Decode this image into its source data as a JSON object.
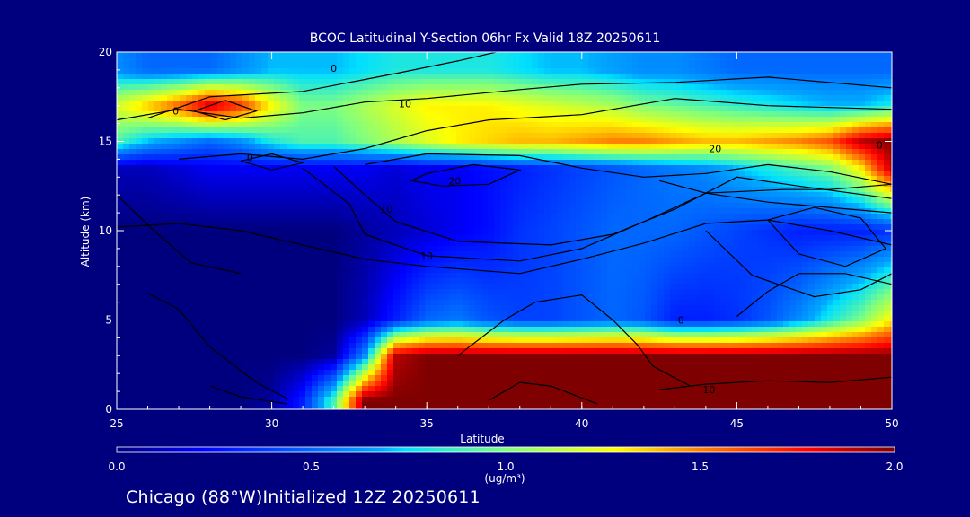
{
  "chart_data": {
    "type": "heatmap",
    "title": "BCOC Latitudinal Y-Section 06hr  Fx Valid 18Z 20250611",
    "xlabel": "Latitude",
    "ylabel": "Altitude (km)",
    "xlim": [
      25,
      50
    ],
    "ylim": [
      0,
      20
    ],
    "x_ticks": [
      "25",
      "30",
      "35",
      "40",
      "45",
      "50"
    ],
    "y_ticks": [
      "0",
      "5",
      "10",
      "15",
      "20"
    ],
    "colorbar": {
      "label": "(ug/m³)",
      "range": [
        0.0,
        2.0
      ],
      "ticks": [
        "0.0",
        "0.5",
        "1.0",
        "1.5",
        "2.0"
      ],
      "colormap": "jet"
    },
    "surface_field": {
      "description_rows": [
        {
          "alt": 0.5,
          "values": [
            0.0,
            0.0,
            0.0,
            0.0,
            0.0,
            0.05,
            0.3,
            0.9,
            2.0,
            2.0,
            2.0,
            2.0,
            2.0,
            2.0,
            2.0,
            2.0,
            2.0,
            2.0,
            2.0,
            2.0,
            2.0,
            2.0,
            2.0,
            2.0,
            2.0,
            2.0
          ]
        },
        {
          "alt": 3.0,
          "values": [
            0.0,
            0.0,
            0.0,
            0.0,
            0.0,
            0.0,
            0.0,
            0.05,
            0.6,
            1.9,
            2.0,
            2.0,
            2.0,
            2.0,
            2.0,
            2.0,
            2.0,
            2.0,
            2.0,
            2.0,
            2.0,
            2.0,
            2.0,
            2.0,
            2.0,
            2.0
          ]
        },
        {
          "alt": 5.0,
          "values": [
            0.0,
            0.0,
            0.0,
            0.0,
            0.0,
            0.0,
            0.0,
            0.0,
            0.1,
            0.3,
            0.5,
            0.55,
            0.45,
            0.4,
            0.4,
            0.45,
            0.5,
            0.45,
            0.3,
            0.3,
            0.35,
            0.45,
            0.6,
            0.8,
            1.0,
            1.3
          ]
        },
        {
          "alt": 10.0,
          "values": [
            0.0,
            0.0,
            0.0,
            0.0,
            0.0,
            0.0,
            0.0,
            0.0,
            0.05,
            0.1,
            0.15,
            0.2,
            0.25,
            0.35,
            0.4,
            0.45,
            0.5,
            0.5,
            0.5,
            0.45,
            0.4,
            0.35,
            0.3,
            0.3,
            0.3,
            0.35
          ]
        },
        {
          "alt": 13.5,
          "values": [
            0.1,
            0.1,
            0.15,
            0.2,
            0.2,
            0.2,
            0.2,
            0.2,
            0.2,
            0.15,
            0.2,
            0.2,
            0.25,
            0.3,
            0.35,
            0.4,
            0.45,
            0.5,
            0.55,
            0.6,
            0.7,
            0.8,
            0.9,
            1.0,
            1.3,
            1.9
          ]
        },
        {
          "alt": 15.0,
          "values": [
            0.9,
            0.7,
            0.6,
            0.5,
            0.6,
            0.8,
            0.9,
            0.9,
            1.0,
            1.1,
            1.2,
            1.3,
            1.35,
            1.4,
            1.4,
            1.45,
            1.5,
            1.5,
            1.45,
            1.4,
            1.4,
            1.45,
            1.5,
            1.6,
            1.9,
            2.0
          ]
        },
        {
          "alt": 17.0,
          "values": [
            1.2,
            1.4,
            1.6,
            1.9,
            1.7,
            1.3,
            1.0,
            1.0,
            1.1,
            1.2,
            1.3,
            1.3,
            1.3,
            1.25,
            1.2,
            1.15,
            1.1,
            1.0,
            0.95,
            0.9,
            0.85,
            0.8,
            0.75,
            0.7,
            0.7,
            0.8
          ]
        },
        {
          "alt": 19.0,
          "values": [
            0.6,
            0.5,
            0.5,
            0.5,
            0.6,
            0.7,
            0.7,
            0.7,
            0.75,
            0.8,
            0.8,
            0.8,
            0.8,
            0.75,
            0.7,
            0.7,
            0.65,
            0.6,
            0.6,
            0.55,
            0.5,
            0.5,
            0.5,
            0.5,
            0.5,
            0.5
          ]
        }
      ]
    },
    "contour_labels": [
      {
        "text": "0",
        "lat": 32.0,
        "alt": 19.1
      },
      {
        "text": "0",
        "lat": 26.9,
        "alt": 16.7
      },
      {
        "text": "10",
        "lat": 34.3,
        "alt": 17.1
      },
      {
        "text": "0",
        "lat": 29.3,
        "alt": 14.1
      },
      {
        "text": "20",
        "lat": 35.9,
        "alt": 12.8
      },
      {
        "text": "20",
        "lat": 44.3,
        "alt": 14.6
      },
      {
        "text": "10",
        "lat": 33.7,
        "alt": 11.2
      },
      {
        "text": "10",
        "lat": 35.0,
        "alt": 8.6
      },
      {
        "text": "10",
        "lat": 44.1,
        "alt": 1.1
      },
      {
        "text": "0",
        "lat": 43.2,
        "alt": 5.0
      },
      {
        "text": "0",
        "lat": 49.6,
        "alt": 14.8
      }
    ]
  },
  "footer": "Chicago (88°W)Initialized 12Z 20250611"
}
